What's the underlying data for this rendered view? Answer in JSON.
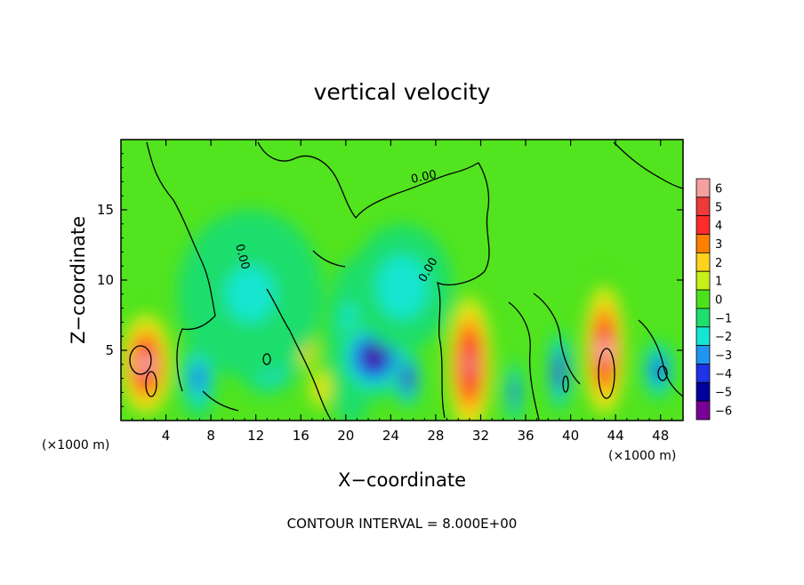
{
  "chart_data": {
    "type": "heatmap",
    "title": "vertical velocity",
    "xlabel": "X−coordinate",
    "ylabel": "Z−coordinate",
    "x_unit_label": "(×1000 m)",
    "x_unit_label_right": "(×1000 m)",
    "footer": "CONTOUR INTERVAL = 8.000E+00",
    "xlim": [
      0,
      50
    ],
    "ylim": [
      0,
      20
    ],
    "x_ticks": [
      4,
      8,
      12,
      16,
      20,
      24,
      28,
      32,
      36,
      40,
      44,
      48
    ],
    "y_ticks": [
      5,
      10,
      15
    ],
    "colorbar": {
      "levels": [
        6,
        5,
        4,
        3,
        2,
        1,
        0,
        -1,
        -2,
        -3,
        -4,
        -5,
        -6
      ],
      "labels": [
        "6",
        "5",
        "4",
        "3",
        "2",
        "1",
        "0",
        "−1",
        "−2",
        "−3",
        "−4",
        "−5",
        "−6"
      ],
      "colors": [
        "#f4a0a0",
        "#ee3a3a",
        "#ff2a2a",
        "#ff7f00",
        "#ffd21e",
        "#c8f018",
        "#4be21c",
        "#1ede6c",
        "#14e6d2",
        "#1e96f0",
        "#1e32e6",
        "#00009b",
        "#780096"
      ]
    },
    "contour_labels": [
      {
        "text": "0.00",
        "x": 10.5,
        "z": 11.6,
        "rotate": 75
      },
      {
        "text": "0.00",
        "x": 27.6,
        "z": 10.6,
        "rotate": -60
      },
      {
        "text": "0.00",
        "x": 27.0,
        "z": 17.1,
        "rotate": -12
      }
    ],
    "cells": [
      {
        "x": 2.2,
        "z": 4.0,
        "rx": 2.8,
        "rz": 4.6,
        "v": 6.5
      },
      {
        "x": 6.9,
        "z": 3.0,
        "rx": 1.6,
        "rz": 3.0,
        "v": -4.0
      },
      {
        "x": 13.0,
        "z": 4.8,
        "rx": 3.0,
        "rz": 3.0,
        "v": -5.5
      },
      {
        "x": 16.5,
        "z": 5.0,
        "rx": 1.0,
        "rz": 1.6,
        "v": 3.0
      },
      {
        "x": 20.5,
        "z": 5.5,
        "rx": 2.2,
        "rz": 6.0,
        "v": -2.5
      },
      {
        "x": 22.5,
        "z": 4.5,
        "rx": 3.5,
        "rz": 3.0,
        "v": -6.0
      },
      {
        "x": 25.5,
        "z": 3.0,
        "rx": 1.2,
        "rz": 2.2,
        "v": -5.5
      },
      {
        "x": 31.0,
        "z": 4.0,
        "rx": 2.2,
        "rz": 5.5,
        "v": 6.0
      },
      {
        "x": 35.0,
        "z": 2.0,
        "rx": 0.7,
        "rz": 2.4,
        "v": -4.5
      },
      {
        "x": 39.0,
        "z": 3.5,
        "rx": 1.0,
        "rz": 3.0,
        "v": -5.5
      },
      {
        "x": 43.0,
        "z": 5.0,
        "rx": 2.2,
        "rz": 6.0,
        "v": 6.5
      },
      {
        "x": 47.8,
        "z": 3.6,
        "rx": 1.4,
        "rz": 2.2,
        "v": -4.5
      },
      {
        "x": 11.5,
        "z": 9.0,
        "rx": 6.5,
        "rz": 6.0,
        "v": -1.5
      },
      {
        "x": 25.0,
        "z": 9.5,
        "rx": 4.5,
        "rz": 4.5,
        "v": -1.2
      },
      {
        "x": 17.8,
        "z": 2.3,
        "rx": 1.3,
        "rz": 2.0,
        "v": 2.0
      }
    ]
  }
}
